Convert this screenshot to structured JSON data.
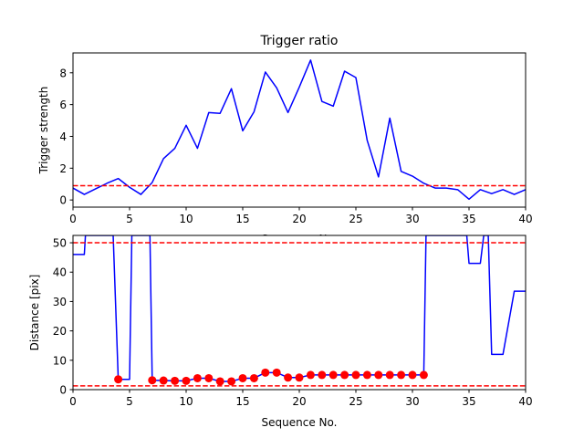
{
  "chart_data": [
    {
      "type": "line",
      "title": "Trigger ratio",
      "xlabel": "Sequence No.",
      "ylabel": "Trigger strength",
      "xlim": [
        0,
        40
      ],
      "ylim": [
        -0.45,
        9.25
      ],
      "xticks": [
        0,
        5,
        10,
        15,
        20,
        25,
        30,
        35,
        40
      ],
      "xtick_labels": [
        "0",
        "5",
        "10",
        "15",
        "20",
        "25",
        "30",
        "35",
        "40"
      ],
      "yticks": [
        0,
        2,
        4,
        6,
        8
      ],
      "ytick_labels": [
        "0",
        "2",
        "4",
        "6",
        "8"
      ],
      "grid": false,
      "series": [
        {
          "style": "line",
          "color": "#0000ff",
          "x": [
            0,
            1,
            2,
            3,
            4,
            5,
            6,
            7,
            8,
            9,
            10,
            11,
            12,
            13,
            14,
            15,
            16,
            17,
            18,
            19,
            20,
            21,
            22,
            23,
            24,
            25,
            26,
            27,
            28,
            29,
            30,
            31,
            32,
            33,
            34,
            35,
            36,
            37,
            38,
            39,
            40
          ],
          "values": [
            0.75,
            0.35,
            0.7,
            1.05,
            1.35,
            0.8,
            0.35,
            1.1,
            2.6,
            3.25,
            4.7,
            3.25,
            5.5,
            5.45,
            7.0,
            4.35,
            5.55,
            8.05,
            7.05,
            5.5,
            7.1,
            8.8,
            6.2,
            5.9,
            8.1,
            7.7,
            3.75,
            1.45,
            5.15,
            1.8,
            1.5,
            1.05,
            0.75,
            0.75,
            0.65,
            0.05,
            0.65,
            0.4,
            0.65,
            0.35,
            0.65
          ]
        },
        {
          "style": "dashed",
          "color": "#ff0000",
          "x": [
            0,
            40
          ],
          "values": [
            0.9,
            0.9
          ]
        }
      ]
    },
    {
      "type": "line",
      "title": "",
      "xlabel": "Sequence No.",
      "ylabel": "Distance [pix]",
      "xlim": [
        0,
        40
      ],
      "ylim": [
        0,
        52.5
      ],
      "xticks": [
        0,
        5,
        10,
        15,
        20,
        25,
        30,
        35,
        40
      ],
      "xtick_labels": [
        "0",
        "5",
        "10",
        "15",
        "20",
        "25",
        "30",
        "35",
        "40"
      ],
      "yticks": [
        0,
        10,
        20,
        30,
        40,
        50
      ],
      "ytick_labels": [
        "0",
        "10",
        "20",
        "30",
        "40",
        "50"
      ],
      "grid": false,
      "series": [
        {
          "style": "line",
          "color": "#0000ff",
          "x": [
            0,
            1,
            1.1,
            3.55,
            4,
            5,
            5.2,
            6.8,
            7,
            8,
            9,
            10,
            11,
            12,
            13,
            14,
            15,
            16,
            17,
            18,
            19,
            20,
            21,
            22,
            23,
            24,
            25,
            26,
            27,
            28,
            29,
            30,
            31,
            31.2,
            34.8,
            35,
            36,
            36.3,
            36.7,
            37,
            38,
            39,
            40
          ],
          "values": [
            46,
            46,
            52.5,
            52.5,
            3.5,
            3.5,
            52.5,
            52.5,
            3.2,
            3.1,
            3.0,
            3.0,
            3.9,
            3.9,
            2.8,
            2.8,
            3.9,
            3.9,
            5.8,
            5.8,
            4.1,
            4.1,
            5.0,
            5.0,
            5.0,
            5.0,
            5.0,
            5.0,
            5.0,
            5.0,
            5.0,
            5.0,
            5.0,
            52.5,
            52.5,
            43,
            43,
            52.5,
            52.5,
            12,
            12,
            33.5,
            33.5
          ]
        },
        {
          "style": "markers",
          "color": "#ff0000",
          "x": [
            4,
            7,
            8,
            9,
            10,
            11,
            12,
            13,
            14,
            15,
            16,
            17,
            18,
            19,
            20,
            21,
            22,
            23,
            24,
            25,
            26,
            27,
            28,
            29,
            30,
            31
          ],
          "values": [
            3.5,
            3.2,
            3.1,
            3.0,
            3.0,
            3.9,
            3.9,
            2.8,
            2.8,
            3.9,
            3.9,
            5.8,
            5.8,
            4.1,
            4.1,
            5.0,
            5.0,
            5.0,
            5.0,
            5.0,
            5.0,
            5.0,
            5.0,
            5.0,
            5.0,
            5.0
          ]
        },
        {
          "style": "dashed",
          "color": "#ff0000",
          "x": [
            0,
            40
          ],
          "values": [
            50,
            50
          ]
        },
        {
          "style": "dashed",
          "color": "#ff0000",
          "x": [
            0,
            40
          ],
          "values": [
            1.3,
            1.3
          ]
        }
      ]
    }
  ]
}
